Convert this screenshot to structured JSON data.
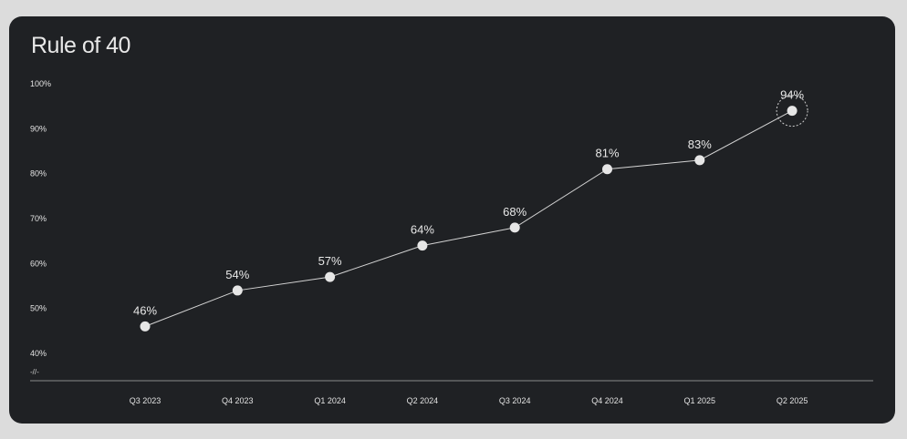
{
  "colors": {
    "page_background": "#dcdcdc",
    "card_background": "#1f2124",
    "line": "#d4d4d4",
    "point": "#e6e6e6",
    "text": "#e8e8e8",
    "axis": "#8a8a8a"
  },
  "chart_data": {
    "type": "line",
    "title": "Rule of 40",
    "xlabel": "",
    "ylabel": "",
    "categories": [
      "Q3 2023",
      "Q4 2023",
      "Q1 2024",
      "Q2 2024",
      "Q3 2024",
      "Q4 2024",
      "Q1 2025",
      "Q2 2025"
    ],
    "series": [
      {
        "values": [
          46,
          54,
          57,
          64,
          68,
          81,
          83,
          94
        ],
        "data_labels": [
          "46%",
          "54%",
          "57%",
          "64%",
          "68%",
          "81%",
          "83%",
          "94%"
        ]
      }
    ],
    "ylim": [
      40,
      100
    ],
    "yticks": [
      40,
      50,
      60,
      70,
      80,
      90,
      100
    ],
    "ytick_labels": [
      "40%",
      "50%",
      "60%",
      "70%",
      "80%",
      "90%",
      "100%"
    ],
    "axis_break_label": "-//-",
    "highlight_index": 7,
    "grid": false,
    "legend": "none"
  }
}
